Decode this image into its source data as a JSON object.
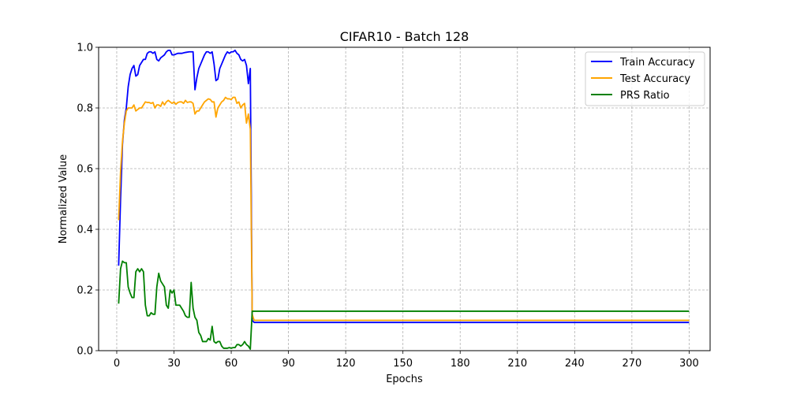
{
  "chart_data": {
    "type": "line",
    "title": "CIFAR10 - Batch 128",
    "xlabel": "Epochs",
    "ylabel": "Normalized Value",
    "xlim": [
      -9.5,
      311
    ],
    "ylim": [
      0,
      1.0
    ],
    "xticks": [
      0,
      30,
      60,
      90,
      120,
      150,
      180,
      210,
      240,
      270,
      300
    ],
    "yticks": [
      0.0,
      0.2,
      0.4,
      0.6,
      0.8,
      1.0
    ],
    "xtick_labels": [
      "0",
      "30",
      "60",
      "90",
      "120",
      "150",
      "180",
      "210",
      "240",
      "270",
      "300"
    ],
    "ytick_labels": [
      "0.0",
      "0.2",
      "0.4",
      "0.6",
      "0.8",
      "1.0"
    ],
    "grid": true,
    "legend_position": "top-right",
    "series": [
      {
        "name": "Train Accuracy",
        "color": "#0000ff",
        "points": [
          [
            1,
            0.28
          ],
          [
            2,
            0.5
          ],
          [
            3,
            0.68
          ],
          [
            4,
            0.76
          ],
          [
            5,
            0.8
          ],
          [
            6,
            0.87
          ],
          [
            7,
            0.91
          ],
          [
            8,
            0.93
          ],
          [
            9,
            0.94
          ],
          [
            10,
            0.905
          ],
          [
            11,
            0.91
          ],
          [
            12,
            0.94
          ],
          [
            13,
            0.95
          ],
          [
            14,
            0.96
          ],
          [
            15,
            0.96
          ],
          [
            16,
            0.98
          ],
          [
            17,
            0.985
          ],
          [
            18,
            0.985
          ],
          [
            19,
            0.98
          ],
          [
            20,
            0.985
          ],
          [
            21,
            0.96
          ],
          [
            22,
            0.955
          ],
          [
            23,
            0.965
          ],
          [
            24,
            0.97
          ],
          [
            25,
            0.975
          ],
          [
            26,
            0.985
          ],
          [
            27,
            0.99
          ],
          [
            28,
            0.99
          ],
          [
            29,
            0.975
          ],
          [
            30,
            0.975
          ],
          [
            32,
            0.98
          ],
          [
            34,
            0.98
          ],
          [
            36,
            0.983
          ],
          [
            38,
            0.985
          ],
          [
            40,
            0.985
          ],
          [
            41,
            0.86
          ],
          [
            42,
            0.9
          ],
          [
            43,
            0.93
          ],
          [
            44,
            0.945
          ],
          [
            45,
            0.96
          ],
          [
            46,
            0.975
          ],
          [
            47,
            0.985
          ],
          [
            48,
            0.985
          ],
          [
            49,
            0.98
          ],
          [
            50,
            0.985
          ],
          [
            51,
            0.945
          ],
          [
            52,
            0.89
          ],
          [
            53,
            0.895
          ],
          [
            54,
            0.93
          ],
          [
            55,
            0.945
          ],
          [
            56,
            0.96
          ],
          [
            57,
            0.975
          ],
          [
            58,
            0.985
          ],
          [
            59,
            0.98
          ],
          [
            60,
            0.985
          ],
          [
            61,
            0.985
          ],
          [
            62,
            0.99
          ],
          [
            63,
            0.98
          ],
          [
            64,
            0.975
          ],
          [
            65,
            0.96
          ],
          [
            66,
            0.955
          ],
          [
            67,
            0.96
          ],
          [
            68,
            0.94
          ],
          [
            69,
            0.88
          ],
          [
            70,
            0.93
          ],
          [
            71,
            0.1
          ],
          [
            72,
            0.093
          ],
          [
            73,
            0.093
          ],
          [
            80,
            0.093
          ],
          [
            300,
            0.093
          ]
        ]
      },
      {
        "name": "Test Accuracy",
        "color": "#ffa500",
        "points": [
          [
            1,
            0.43
          ],
          [
            2,
            0.59
          ],
          [
            3,
            0.69
          ],
          [
            4,
            0.75
          ],
          [
            5,
            0.79
          ],
          [
            6,
            0.8
          ],
          [
            7,
            0.8
          ],
          [
            8,
            0.8
          ],
          [
            9,
            0.81
          ],
          [
            10,
            0.79
          ],
          [
            11,
            0.795
          ],
          [
            12,
            0.8
          ],
          [
            13,
            0.8
          ],
          [
            14,
            0.81
          ],
          [
            15,
            0.82
          ],
          [
            16,
            0.818
          ],
          [
            17,
            0.818
          ],
          [
            18,
            0.815
          ],
          [
            19,
            0.818
          ],
          [
            20,
            0.8
          ],
          [
            21,
            0.81
          ],
          [
            22,
            0.81
          ],
          [
            23,
            0.805
          ],
          [
            24,
            0.82
          ],
          [
            25,
            0.81
          ],
          [
            26,
            0.82
          ],
          [
            27,
            0.825
          ],
          [
            28,
            0.82
          ],
          [
            29,
            0.815
          ],
          [
            30,
            0.82
          ],
          [
            31,
            0.812
          ],
          [
            32,
            0.818
          ],
          [
            33,
            0.82
          ],
          [
            34,
            0.82
          ],
          [
            35,
            0.815
          ],
          [
            36,
            0.825
          ],
          [
            37,
            0.818
          ],
          [
            38,
            0.82
          ],
          [
            39,
            0.82
          ],
          [
            40,
            0.815
          ],
          [
            41,
            0.78
          ],
          [
            42,
            0.79
          ],
          [
            43,
            0.79
          ],
          [
            44,
            0.8
          ],
          [
            45,
            0.81
          ],
          [
            46,
            0.82
          ],
          [
            47,
            0.825
          ],
          [
            48,
            0.83
          ],
          [
            49,
            0.828
          ],
          [
            50,
            0.82
          ],
          [
            51,
            0.82
          ],
          [
            52,
            0.77
          ],
          [
            53,
            0.8
          ],
          [
            54,
            0.81
          ],
          [
            55,
            0.82
          ],
          [
            56,
            0.825
          ],
          [
            57,
            0.835
          ],
          [
            58,
            0.83
          ],
          [
            59,
            0.83
          ],
          [
            60,
            0.828
          ],
          [
            61,
            0.835
          ],
          [
            62,
            0.835
          ],
          [
            63,
            0.815
          ],
          [
            64,
            0.82
          ],
          [
            65,
            0.8
          ],
          [
            66,
            0.81
          ],
          [
            67,
            0.815
          ],
          [
            68,
            0.75
          ],
          [
            69,
            0.78
          ],
          [
            70,
            0.73
          ],
          [
            71,
            0.12
          ],
          [
            72,
            0.1
          ],
          [
            73,
            0.1
          ],
          [
            80,
            0.1
          ],
          [
            300,
            0.1
          ]
        ]
      },
      {
        "name": "PRS Ratio",
        "color": "#008000",
        "points": [
          [
            1,
            0.155
          ],
          [
            2,
            0.27
          ],
          [
            3,
            0.295
          ],
          [
            4,
            0.29
          ],
          [
            5,
            0.29
          ],
          [
            6,
            0.21
          ],
          [
            7,
            0.19
          ],
          [
            8,
            0.175
          ],
          [
            9,
            0.175
          ],
          [
            10,
            0.26
          ],
          [
            11,
            0.27
          ],
          [
            12,
            0.26
          ],
          [
            13,
            0.27
          ],
          [
            14,
            0.26
          ],
          [
            15,
            0.15
          ],
          [
            16,
            0.115
          ],
          [
            17,
            0.115
          ],
          [
            18,
            0.125
          ],
          [
            19,
            0.12
          ],
          [
            20,
            0.12
          ],
          [
            21,
            0.21
          ],
          [
            22,
            0.255
          ],
          [
            23,
            0.23
          ],
          [
            24,
            0.22
          ],
          [
            25,
            0.21
          ],
          [
            26,
            0.15
          ],
          [
            27,
            0.14
          ],
          [
            28,
            0.2
          ],
          [
            29,
            0.19
          ],
          [
            30,
            0.2
          ],
          [
            31,
            0.15
          ],
          [
            32,
            0.15
          ],
          [
            33,
            0.15
          ],
          [
            34,
            0.14
          ],
          [
            35,
            0.13
          ],
          [
            36,
            0.115
          ],
          [
            37,
            0.11
          ],
          [
            38,
            0.11
          ],
          [
            39,
            0.225
          ],
          [
            40,
            0.14
          ],
          [
            41,
            0.11
          ],
          [
            42,
            0.1
          ],
          [
            43,
            0.06
          ],
          [
            44,
            0.05
          ],
          [
            45,
            0.03
          ],
          [
            46,
            0.03
          ],
          [
            47,
            0.03
          ],
          [
            48,
            0.04
          ],
          [
            49,
            0.035
          ],
          [
            50,
            0.08
          ],
          [
            51,
            0.03
          ],
          [
            52,
            0.025
          ],
          [
            53,
            0.03
          ],
          [
            54,
            0.03
          ],
          [
            55,
            0.015
          ],
          [
            56,
            0.008
          ],
          [
            57,
            0.008
          ],
          [
            58,
            0.008
          ],
          [
            59,
            0.01
          ],
          [
            60,
            0.008
          ],
          [
            61,
            0.01
          ],
          [
            62,
            0.01
          ],
          [
            63,
            0.02
          ],
          [
            64,
            0.02
          ],
          [
            65,
            0.015
          ],
          [
            66,
            0.02
          ],
          [
            67,
            0.03
          ],
          [
            68,
            0.02
          ],
          [
            69,
            0.015
          ],
          [
            70,
            0.005
          ],
          [
            71,
            0.13
          ],
          [
            72,
            0.13
          ],
          [
            80,
            0.13
          ],
          [
            300,
            0.13
          ]
        ]
      }
    ]
  }
}
